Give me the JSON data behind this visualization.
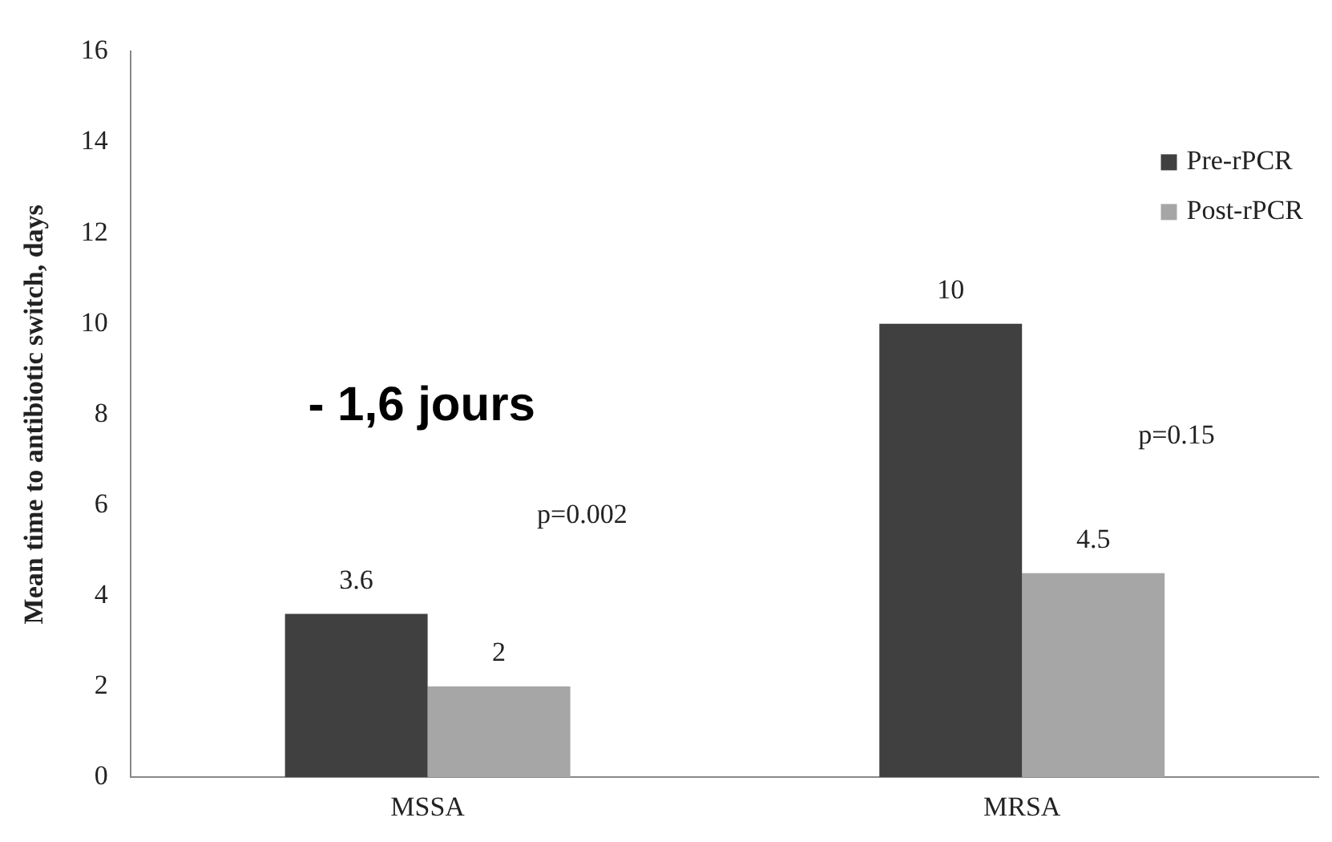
{
  "chart_data": {
    "type": "bar",
    "ylabel": "Mean time to antibiotic switch, days",
    "categories": [
      "MSSA",
      "MRSA"
    ],
    "series": [
      {
        "name": "Pre-rPCR",
        "color": "#404040",
        "values": [
          3.6,
          10
        ]
      },
      {
        "name": "Post-rPCR",
        "color": "#a6a6a6",
        "values": [
          2,
          4.5
        ]
      }
    ],
    "ylim": [
      0,
      16
    ],
    "yticks": [
      0,
      2,
      4,
      6,
      8,
      10,
      12,
      14,
      16
    ],
    "data_labels": true,
    "legend": "top right",
    "grid": false,
    "annotations": [
      "- 1,6 jours",
      "p=0.002",
      "p=0.15"
    ]
  }
}
